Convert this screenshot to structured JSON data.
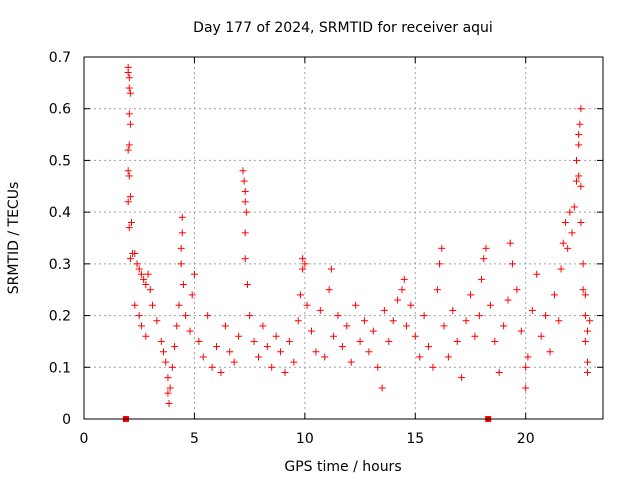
{
  "chart_data": {
    "type": "scatter",
    "title": "Day 177 of 2024, SRMTID for receiver aqui",
    "xlabel": "GPS time / hours",
    "ylabel": "SRMTID / TECUs",
    "xlim": [
      0,
      23.5
    ],
    "ylim": [
      0,
      0.7
    ],
    "xticks": [
      0,
      5,
      10,
      15,
      20
    ],
    "yticks": [
      0,
      0.1,
      0.2,
      0.3,
      0.4,
      0.5,
      0.6,
      0.7
    ],
    "grid": true,
    "marker": "plus",
    "color": "#ff0000",
    "zero_markers_x": [
      1.9,
      18.3
    ],
    "series": [
      {
        "name": "SRMTID",
        "points": [
          [
            2.0,
            0.68
          ],
          [
            2.0,
            0.67
          ],
          [
            2.05,
            0.66
          ],
          [
            2.05,
            0.64
          ],
          [
            2.1,
            0.63
          ],
          [
            2.05,
            0.59
          ],
          [
            2.1,
            0.57
          ],
          [
            2.05,
            0.53
          ],
          [
            2.0,
            0.52
          ],
          [
            2.0,
            0.48
          ],
          [
            2.05,
            0.47
          ],
          [
            2.1,
            0.43
          ],
          [
            2.0,
            0.42
          ],
          [
            2.15,
            0.38
          ],
          [
            2.05,
            0.37
          ],
          [
            2.2,
            0.32
          ],
          [
            2.1,
            0.31
          ],
          [
            2.3,
            0.32
          ],
          [
            2.4,
            0.3
          ],
          [
            2.5,
            0.29
          ],
          [
            2.6,
            0.28
          ],
          [
            2.7,
            0.27
          ],
          [
            2.8,
            0.26
          ],
          [
            2.9,
            0.28
          ],
          [
            3.0,
            0.25
          ],
          [
            2.3,
            0.22
          ],
          [
            2.5,
            0.2
          ],
          [
            2.6,
            0.18
          ],
          [
            2.8,
            0.16
          ],
          [
            3.1,
            0.22
          ],
          [
            3.3,
            0.19
          ],
          [
            3.5,
            0.15
          ],
          [
            3.6,
            0.13
          ],
          [
            3.7,
            0.11
          ],
          [
            3.8,
            0.08
          ],
          [
            3.8,
            0.05
          ],
          [
            3.85,
            0.03
          ],
          [
            3.9,
            0.06
          ],
          [
            4.0,
            0.1
          ],
          [
            4.1,
            0.14
          ],
          [
            4.2,
            0.18
          ],
          [
            4.3,
            0.22
          ],
          [
            4.4,
            0.3
          ],
          [
            4.4,
            0.33
          ],
          [
            4.45,
            0.36
          ],
          [
            4.45,
            0.39
          ],
          [
            4.5,
            0.26
          ],
          [
            4.6,
            0.2
          ],
          [
            4.8,
            0.17
          ],
          [
            4.9,
            0.24
          ],
          [
            5.0,
            0.28
          ],
          [
            5.2,
            0.15
          ],
          [
            5.4,
            0.12
          ],
          [
            5.6,
            0.2
          ],
          [
            5.8,
            0.1
          ],
          [
            6.0,
            0.14
          ],
          [
            6.2,
            0.09
          ],
          [
            6.4,
            0.18
          ],
          [
            6.6,
            0.13
          ],
          [
            6.8,
            0.11
          ],
          [
            7.0,
            0.16
          ],
          [
            7.2,
            0.48
          ],
          [
            7.25,
            0.46
          ],
          [
            7.3,
            0.44
          ],
          [
            7.3,
            0.42
          ],
          [
            7.35,
            0.4
          ],
          [
            7.3,
            0.36
          ],
          [
            7.3,
            0.31
          ],
          [
            7.4,
            0.26
          ],
          [
            7.5,
            0.2
          ],
          [
            7.7,
            0.15
          ],
          [
            7.9,
            0.12
          ],
          [
            8.1,
            0.18
          ],
          [
            8.3,
            0.14
          ],
          [
            8.5,
            0.1
          ],
          [
            8.7,
            0.16
          ],
          [
            8.9,
            0.13
          ],
          [
            9.1,
            0.09
          ],
          [
            9.3,
            0.15
          ],
          [
            9.5,
            0.11
          ],
          [
            9.7,
            0.19
          ],
          [
            9.8,
            0.24
          ],
          [
            9.9,
            0.29
          ],
          [
            9.9,
            0.31
          ],
          [
            10.0,
            0.3
          ],
          [
            10.1,
            0.22
          ],
          [
            10.3,
            0.17
          ],
          [
            10.5,
            0.13
          ],
          [
            10.7,
            0.21
          ],
          [
            10.9,
            0.12
          ],
          [
            11.1,
            0.25
          ],
          [
            11.2,
            0.29
          ],
          [
            11.3,
            0.16
          ],
          [
            11.5,
            0.2
          ],
          [
            11.7,
            0.14
          ],
          [
            11.9,
            0.18
          ],
          [
            12.1,
            0.11
          ],
          [
            12.3,
            0.22
          ],
          [
            12.5,
            0.15
          ],
          [
            12.7,
            0.19
          ],
          [
            12.9,
            0.13
          ],
          [
            13.1,
            0.17
          ],
          [
            13.3,
            0.1
          ],
          [
            13.5,
            0.06
          ],
          [
            13.6,
            0.21
          ],
          [
            13.8,
            0.15
          ],
          [
            14.0,
            0.19
          ],
          [
            14.2,
            0.23
          ],
          [
            14.4,
            0.25
          ],
          [
            14.5,
            0.27
          ],
          [
            14.6,
            0.18
          ],
          [
            14.8,
            0.22
          ],
          [
            15.0,
            0.16
          ],
          [
            15.2,
            0.12
          ],
          [
            15.4,
            0.2
          ],
          [
            15.6,
            0.14
          ],
          [
            15.8,
            0.1
          ],
          [
            16.0,
            0.25
          ],
          [
            16.1,
            0.3
          ],
          [
            16.2,
            0.33
          ],
          [
            16.3,
            0.18
          ],
          [
            16.5,
            0.12
          ],
          [
            16.7,
            0.21
          ],
          [
            16.9,
            0.15
          ],
          [
            17.1,
            0.08
          ],
          [
            17.3,
            0.19
          ],
          [
            17.5,
            0.24
          ],
          [
            17.7,
            0.16
          ],
          [
            17.9,
            0.2
          ],
          [
            18.0,
            0.27
          ],
          [
            18.1,
            0.31
          ],
          [
            18.2,
            0.33
          ],
          [
            18.4,
            0.22
          ],
          [
            18.6,
            0.15
          ],
          [
            18.8,
            0.09
          ],
          [
            19.0,
            0.18
          ],
          [
            19.2,
            0.23
          ],
          [
            19.3,
            0.34
          ],
          [
            19.4,
            0.3
          ],
          [
            19.6,
            0.25
          ],
          [
            19.8,
            0.17
          ],
          [
            20.0,
            0.1
          ],
          [
            20.0,
            0.06
          ],
          [
            20.1,
            0.12
          ],
          [
            20.3,
            0.21
          ],
          [
            20.5,
            0.28
          ],
          [
            20.7,
            0.16
          ],
          [
            20.9,
            0.2
          ],
          [
            21.1,
            0.13
          ],
          [
            21.3,
            0.24
          ],
          [
            21.5,
            0.19
          ],
          [
            21.6,
            0.29
          ],
          [
            21.7,
            0.34
          ],
          [
            21.8,
            0.38
          ],
          [
            21.9,
            0.33
          ],
          [
            22.0,
            0.4
          ],
          [
            22.1,
            0.36
          ],
          [
            22.2,
            0.41
          ],
          [
            22.3,
            0.46
          ],
          [
            22.3,
            0.5
          ],
          [
            22.4,
            0.53
          ],
          [
            22.4,
            0.55
          ],
          [
            22.45,
            0.57
          ],
          [
            22.5,
            0.6
          ],
          [
            22.4,
            0.47
          ],
          [
            22.5,
            0.45
          ],
          [
            22.5,
            0.38
          ],
          [
            22.6,
            0.3
          ],
          [
            22.6,
            0.25
          ],
          [
            22.7,
            0.2
          ],
          [
            22.7,
            0.15
          ],
          [
            22.8,
            0.11
          ],
          [
            22.8,
            0.09
          ],
          [
            22.8,
            0.17
          ],
          [
            22.9,
            0.19
          ],
          [
            22.7,
            0.24
          ]
        ]
      }
    ]
  }
}
